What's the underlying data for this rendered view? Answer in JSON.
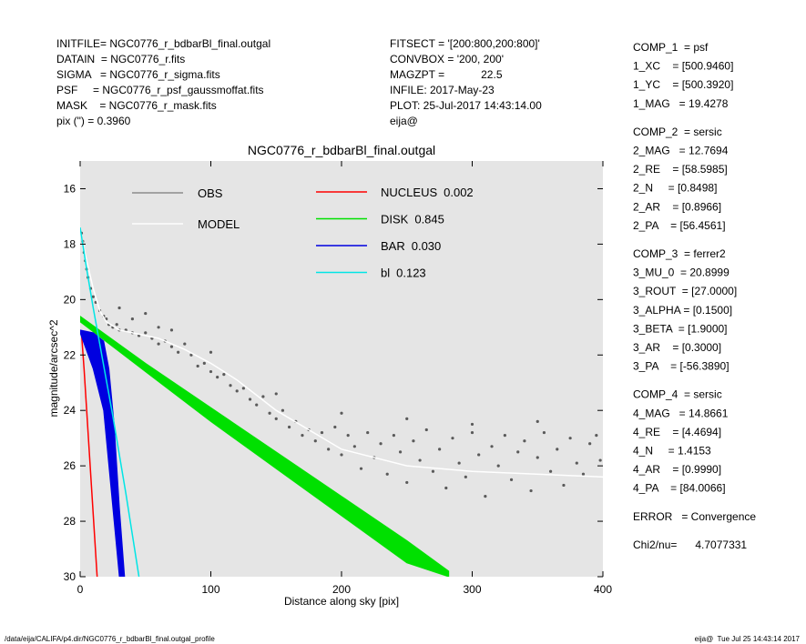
{
  "header_left": [
    "INITFILE= NGC0776_r_bdbarBl_final.outgal",
    "DATAIN  = NGC0776_r.fits",
    "SIGMA   = NGC0776_r_sigma.fits",
    "PSF     = NGC0776_r_psf_gaussmoffat.fits",
    "MASK    = NGC0776_r_mask.fits",
    "pix (\") = 0.3960"
  ],
  "header_mid": [
    "FITSECT = '[200:800,200:800]'",
    "CONVBOX = '200, 200'",
    "MAGZPT =            22.5",
    "INFILE: 2017-May-23",
    "PLOT: 25-Jul-2017 14:43:14.00",
    "eija@"
  ],
  "parameters": [
    [
      "COMP_1  = psf",
      "1_XC    = [500.9460]",
      "1_YC    = [500.3920]",
      "1_MAG   = 19.4278"
    ],
    [
      "COMP_2  = sersic",
      "2_MAG   = 12.7694",
      "2_RE    = [58.5985]",
      "2_N     = [0.8498]",
      "2_AR    = [0.8966]",
      "2_PA    = [56.4561]"
    ],
    [
      "COMP_3  = ferrer2",
      "3_MU_0  = 20.8999",
      "3_ROUT  = [27.0000]",
      "3_ALPHA = [0.1500]",
      "3_BETA  = [1.9000]",
      "3_AR    = [0.3000]",
      "3_PA    = [-56.3890]"
    ],
    [
      "COMP_4  = sersic",
      "4_MAG   = 14.8661",
      "4_RE    = [4.4694]",
      "4_N     = 1.4153",
      "4_AR    = [0.9990]",
      "4_PA    = [84.0066]"
    ],
    [
      "ERROR   = Convergence"
    ],
    [
      "Chi2/nu=      4.7077331"
    ]
  ],
  "footer_left": "/data/eija/CALIFA/p4.dir/NGC0776_r_bdbarBl_final.outgal_profile",
  "footer_right": "eija@  Tue Jul 25 14:43:14 2017",
  "chart_data": {
    "type": "scatter",
    "title": "NGC0776_r_bdbarBl_final.outgal",
    "xlabel": "Distance along sky [pix]",
    "ylabel": "magnitude/arcsec^2",
    "xlim": [
      0,
      400
    ],
    "xticks": [
      0,
      100,
      200,
      300,
      400
    ],
    "ylim": [
      30,
      15
    ],
    "yticks": [
      16,
      18,
      20,
      22,
      24,
      26,
      28,
      30
    ],
    "background": "#e5e5e5",
    "series": [
      {
        "name": "OBS",
        "color": "#5a5a5a",
        "legend_color": "#8c8c8c",
        "style": "points",
        "x": [
          1,
          2,
          3,
          4,
          5,
          6,
          8,
          10,
          12,
          15,
          18,
          20,
          22,
          25,
          28,
          30,
          35,
          40,
          45,
          50,
          55,
          60,
          65,
          70,
          75,
          80,
          85,
          90,
          95,
          100,
          105,
          110,
          115,
          120,
          125,
          130,
          135,
          140,
          145,
          150,
          155,
          160,
          165,
          170,
          175,
          180,
          185,
          190,
          195,
          200,
          205,
          210,
          215,
          220,
          225,
          230,
          235,
          240,
          245,
          250,
          255,
          260,
          265,
          270,
          275,
          280,
          285,
          290,
          295,
          300,
          305,
          310,
          315,
          320,
          325,
          330,
          335,
          340,
          345,
          350,
          355,
          360,
          365,
          370,
          375,
          380,
          385,
          390,
          395,
          398,
          30,
          40,
          50,
          60,
          70,
          100,
          150,
          200,
          250,
          300,
          350
        ],
        "y": [
          17.6,
          17.9,
          18.3,
          18.6,
          18.9,
          19.2,
          19.6,
          19.9,
          20.1,
          20.4,
          20.6,
          20.7,
          20.9,
          21.0,
          20.9,
          21.1,
          21.1,
          21.2,
          21.3,
          21.2,
          21.4,
          21.6,
          21.5,
          21.7,
          21.9,
          21.6,
          22.0,
          22.4,
          22.3,
          22.6,
          22.8,
          22.7,
          23.1,
          23.3,
          23.2,
          23.6,
          23.8,
          23.5,
          24.1,
          24.3,
          24.0,
          24.6,
          24.4,
          24.9,
          24.7,
          25.1,
          24.8,
          25.4,
          24.6,
          25.6,
          24.9,
          25.3,
          26.1,
          24.8,
          25.7,
          25.2,
          26.3,
          24.9,
          25.5,
          26.6,
          25.1,
          25.8,
          24.7,
          26.2,
          25.4,
          26.8,
          25.0,
          25.9,
          26.4,
          24.8,
          25.6,
          27.1,
          25.3,
          26.0,
          24.9,
          26.5,
          25.5,
          25.1,
          26.9,
          25.7,
          24.8,
          26.2,
          25.4,
          26.7,
          25.0,
          25.9,
          26.3,
          25.2,
          24.9,
          25.8,
          20.3,
          20.7,
          20.5,
          21.0,
          21.1,
          21.9,
          23.4,
          24.1,
          24.3,
          24.5,
          24.4
        ]
      },
      {
        "name": "MODEL",
        "color": "#ffffff",
        "style": "line",
        "x": [
          0,
          5,
          10,
          15,
          20,
          30,
          40,
          60,
          80,
          100,
          120,
          150,
          200,
          250,
          300,
          400
        ],
        "y": [
          17.5,
          18.6,
          19.6,
          20.4,
          20.8,
          21.1,
          21.2,
          21.4,
          21.8,
          22.3,
          22.9,
          24.0,
          25.4,
          26.0,
          26.2,
          26.4
        ]
      },
      {
        "name": "NUCLEUS",
        "fraction": "0.002",
        "color": "#ff0000",
        "style": "line",
        "x": [
          1,
          3,
          5,
          7,
          9,
          11,
          13
        ],
        "y": [
          21.2,
          22.5,
          24.0,
          25.5,
          27.0,
          28.5,
          30.0
        ]
      },
      {
        "name": "DISK",
        "fraction": "0.845",
        "color": "#00e000",
        "style": "band",
        "x": [
          0,
          50,
          100,
          150,
          200,
          250,
          282
        ],
        "y": [
          20.6,
          22.3,
          23.9,
          25.5,
          27.1,
          28.7,
          29.8
        ],
        "y2": [
          20.8,
          22.6,
          24.4,
          26.1,
          27.8,
          29.5,
          30.0
        ]
      },
      {
        "name": "BAR",
        "fraction": "0.030",
        "color": "#0000e0",
        "style": "band",
        "x": [
          0,
          10,
          18,
          22,
          26,
          30,
          34
        ],
        "y": [
          21.1,
          21.2,
          21.5,
          22.5,
          24.5,
          27.5,
          30.0
        ],
        "y2": [
          21.2,
          22.5,
          24.0,
          26.0,
          28.0,
          30.0,
          30.0
        ]
      },
      {
        "name": "bl",
        "fraction": "0.123",
        "color": "#00e5e5",
        "style": "line",
        "x": [
          0,
          5,
          10,
          15,
          20,
          25,
          30,
          35,
          40,
          45
        ],
        "y": [
          17.4,
          18.9,
          20.3,
          21.6,
          22.9,
          24.2,
          25.6,
          27.0,
          28.5,
          30.0
        ]
      }
    ]
  }
}
